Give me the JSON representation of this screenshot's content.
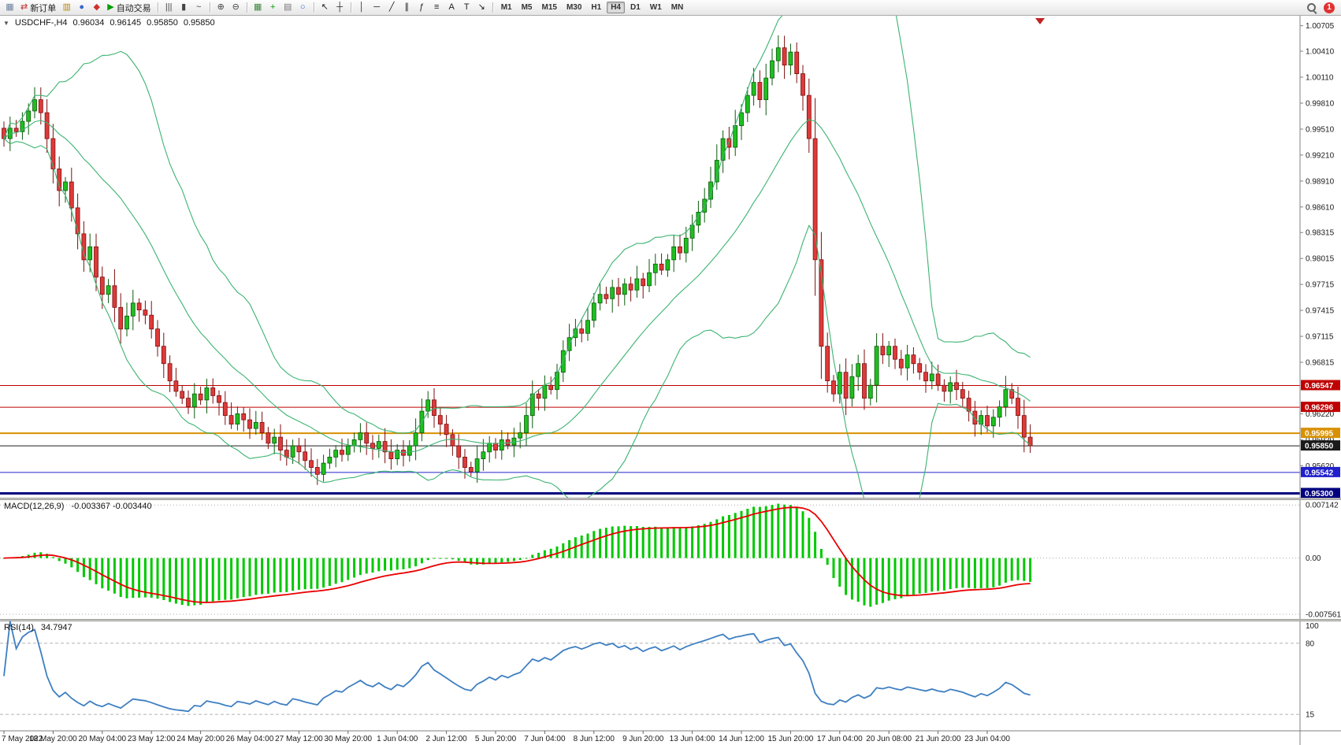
{
  "toolbar": {
    "notification_badge": "1",
    "items": [
      {
        "name": "chart-window-button",
        "glyph": "▦",
        "color": "#6B7F9E"
      },
      {
        "name": "new-order-button",
        "glyph": "⇄",
        "color": "#C03030",
        "label": "新订单"
      },
      {
        "name": "indicator-list-button",
        "glyph": "▥",
        "color": "#B8860B"
      },
      {
        "name": "market-watch-button",
        "glyph": "●",
        "color": "#3366CC"
      },
      {
        "name": "history-center-button",
        "glyph": "◆",
        "color": "#CC3333"
      },
      {
        "name": "autotrading-button",
        "glyph": "▶",
        "color": "#00A000",
        "label": "自动交易"
      },
      {
        "sep": true
      },
      {
        "name": "bar-chart-button",
        "glyph": "|||",
        "color": "#444444"
      },
      {
        "name": "candlestick-chart-button",
        "glyph": "▮",
        "color": "#444444"
      },
      {
        "name": "line-chart-button",
        "glyph": "~",
        "color": "#444444"
      },
      {
        "sep": true
      },
      {
        "name": "zoom-in-button",
        "glyph": "⊕",
        "color": "#444444"
      },
      {
        "name": "zoom-out-button",
        "glyph": "⊖",
        "color": "#444444"
      },
      {
        "sep": true
      },
      {
        "name": "tile-windows-button",
        "glyph": "▦",
        "color": "#3A8A3A"
      },
      {
        "name": "indicators-button",
        "glyph": "+",
        "color": "#00A000"
      },
      {
        "name": "templates-button",
        "glyph": "▤",
        "color": "#777777"
      },
      {
        "name": "refresh-button",
        "glyph": "○",
        "color": "#3366CC"
      },
      {
        "sep": true
      },
      {
        "name": "cursor-button",
        "glyph": "↖",
        "color": "#222222"
      },
      {
        "name": "crosshair-button",
        "glyph": "┼",
        "color": "#222222"
      },
      {
        "sep": true
      },
      {
        "name": "vertical-line-button",
        "glyph": "│",
        "color": "#222222"
      },
      {
        "name": "horizontal-line-button",
        "glyph": "─",
        "color": "#222222"
      },
      {
        "name": "trendline-button",
        "glyph": "╱",
        "color": "#222222"
      },
      {
        "name": "channel-button",
        "glyph": "∥",
        "color": "#222222"
      },
      {
        "name": "fibonacci-button",
        "glyph": "ƒ",
        "color": "#222222"
      },
      {
        "name": "shapes-button",
        "glyph": "≡",
        "color": "#222222"
      },
      {
        "name": "text-button",
        "glyph": "A",
        "color": "#222222"
      },
      {
        "name": "label-button",
        "glyph": "T",
        "color": "#222222"
      },
      {
        "name": "arrows-button",
        "glyph": "↘",
        "color": "#222222"
      },
      {
        "sep": true
      }
    ],
    "timeframes": {
      "items": [
        "M1",
        "M5",
        "M15",
        "M30",
        "H1",
        "H4",
        "D1",
        "W1",
        "MN"
      ],
      "active": "H4"
    }
  },
  "chart": {
    "collapse_icon": "▼",
    "title": "USDCHF-,H4",
    "ohlc": {
      "open": "0.96034",
      "high": "0.96145",
      "low": "0.95850",
      "close": "0.95850"
    },
    "price_axis_ticks": [
      "1.00705",
      "1.00410",
      "1.00110",
      "0.99810",
      "0.99510",
      "0.99210",
      "0.98910",
      "0.98610",
      "0.98315",
      "0.98015",
      "0.97715",
      "0.97415",
      "0.97115",
      "0.96815",
      "0.96220",
      "0.95920",
      "0.95620"
    ],
    "colors": {
      "up": "#1FBF1F",
      "up_border": "#0A5A0A",
      "down": "#DD3A3A",
      "down_border": "#7E0E0E",
      "bollinger": "#3CB371"
    }
  },
  "panels": {
    "macd": {
      "name": "MACD(12,26,9)",
      "values": "-0.003367 -0.003440",
      "scale": {
        "max": 0.0078,
        "min": -0.0082,
        "max_label": "0.007142",
        "zero_label": "0.00",
        "min_label": "-0.007561"
      },
      "colors": {
        "histogram": "#00C800",
        "signal": "#E80000"
      }
    },
    "rsi": {
      "name": "RSI(14)",
      "value": "34.7947",
      "levels": [
        80,
        15
      ],
      "scale_labels": [
        "100",
        "80",
        "15"
      ],
      "color": "#3E7FC1"
    }
  },
  "chart_data": {
    "type": "candlestick",
    "symbol": "USDCHF-",
    "timeframe": "H4",
    "ylim": [
      0.9525,
      1.0082
    ],
    "bars_per_label": 8,
    "x_labels": [
      "7 May 2022",
      "18 May 20:00",
      "20 May 04:00",
      "23 May 12:00",
      "24 May 20:00",
      "26 May 04:00",
      "27 May 12:00",
      "30 May 20:00",
      "1 Jun 04:00",
      "2 Jun 12:00",
      "5 Jun 20:00",
      "7 Jun 04:00",
      "8 Jun 12:00",
      "9 Jun 20:00",
      "13 Jun 04:00",
      "14 Jun 12:00",
      "15 Jun 20:00",
      "17 Jun 04:00",
      "20 Jun 08:00",
      "21 Jun 20:00",
      "23 Jun 04:00"
    ],
    "closes": [
      0.994,
      0.9952,
      0.9948,
      0.996,
      0.9972,
      0.9985,
      0.997,
      0.994,
      0.9905,
      0.988,
      0.989,
      0.986,
      0.983,
      0.98,
      0.9815,
      0.978,
      0.976,
      0.977,
      0.9745,
      0.972,
      0.9735,
      0.975,
      0.9742,
      0.9736,
      0.972,
      0.97,
      0.968,
      0.966,
      0.9648,
      0.964,
      0.963,
      0.9645,
      0.9638,
      0.9652,
      0.9643,
      0.9635,
      0.962,
      0.961,
      0.9622,
      0.9615,
      0.9605,
      0.9612,
      0.96,
      0.9588,
      0.9595,
      0.958,
      0.9572,
      0.9585,
      0.9578,
      0.9568,
      0.956,
      0.9552,
      0.9565,
      0.9572,
      0.958,
      0.9575,
      0.9585,
      0.9592,
      0.96,
      0.9588,
      0.9582,
      0.959,
      0.9578,
      0.957,
      0.958,
      0.9574,
      0.9585,
      0.96,
      0.9625,
      0.9638,
      0.962,
      0.961,
      0.9598,
      0.9585,
      0.9572,
      0.956,
      0.9555,
      0.957,
      0.9578,
      0.9588,
      0.958,
      0.9592,
      0.9586,
      0.9594,
      0.96,
      0.962,
      0.9645,
      0.964,
      0.9655,
      0.965,
      0.967,
      0.9695,
      0.971,
      0.972,
      0.9715,
      0.973,
      0.975,
      0.976,
      0.9755,
      0.9768,
      0.976,
      0.9772,
      0.9765,
      0.9778,
      0.977,
      0.9785,
      0.9795,
      0.9788,
      0.98,
      0.9815,
      0.9808,
      0.9825,
      0.984,
      0.9855,
      0.987,
      0.989,
      0.9915,
      0.994,
      0.993,
      0.9955,
      0.997,
      0.999,
      1.0005,
      0.9985,
      1.001,
      1.003,
      1.0045,
      1.0025,
      1.004,
      1.0015,
      0.999,
      0.994,
      0.98,
      0.97,
      0.966,
      0.9645,
      0.967,
      0.964,
      0.9665,
      0.968,
      0.964,
      0.9655,
      0.97,
      0.969,
      0.97,
      0.9685,
      0.9675,
      0.969,
      0.968,
      0.967,
      0.966,
      0.9668,
      0.9655,
      0.9648,
      0.9658,
      0.965,
      0.964,
      0.9625,
      0.961,
      0.962,
      0.9608,
      0.9618,
      0.963,
      0.965,
      0.964,
      0.962,
      0.9595,
      0.9585
    ],
    "hlines": [
      {
        "name": "resistance-upper",
        "value": 0.96547,
        "label": "0.96547",
        "color": "#C00000",
        "width": 1
      },
      {
        "name": "resistance-lower",
        "value": 0.96296,
        "label": "0.96296",
        "color": "#C00000",
        "width": 1
      },
      {
        "name": "orange-level",
        "value": 0.95995,
        "label": "0.95995",
        "color": "#D89000",
        "width": 2
      },
      {
        "name": "bid",
        "value": 0.9585,
        "label": "0.95850",
        "color": "#1A1A1A",
        "width": 1
      },
      {
        "name": "support-blue",
        "value": 0.95542,
        "label": "0.95542",
        "color": "#2020CC",
        "width": 1
      },
      {
        "name": "support-navy",
        "value": 0.953,
        "label": "0.95300",
        "color": "#000080",
        "width": 3
      }
    ],
    "indicators": [
      {
        "type": "bollinger",
        "period": 20,
        "deviation": 2
      },
      {
        "type": "macd",
        "fast": 12,
        "slow": 26,
        "signal": 9
      },
      {
        "type": "rsi",
        "period": 14
      }
    ]
  }
}
